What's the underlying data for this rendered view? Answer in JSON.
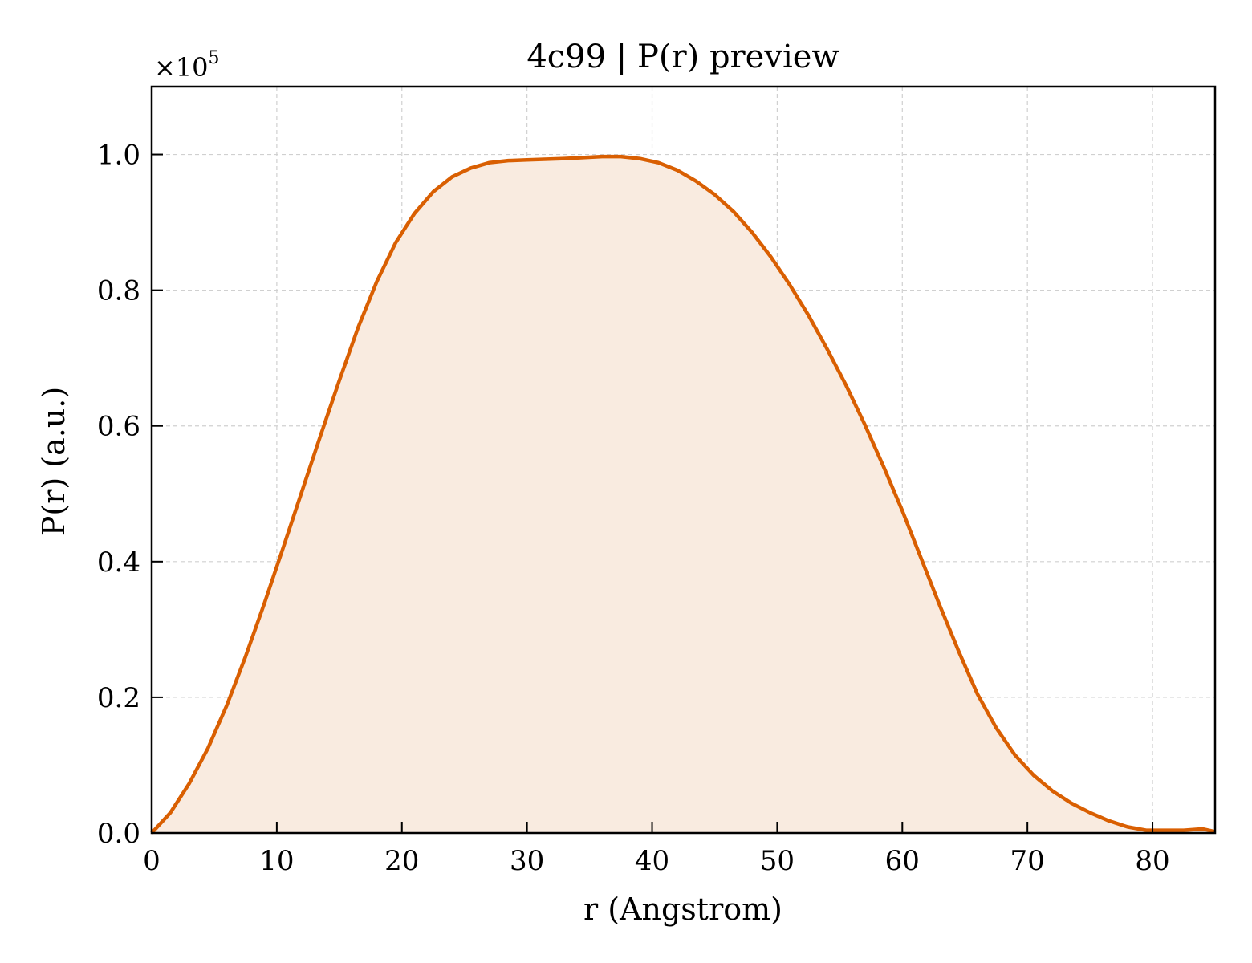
{
  "chart_data": {
    "type": "area",
    "title": "4c99 | P(r) preview",
    "xlabel": "r (Angstrom)",
    "ylabel": "P(r) (a.u.)",
    "y_multiplier_label": "×10",
    "y_multiplier_exponent": "5",
    "xlim": [
      0,
      85
    ],
    "ylim": [
      0,
      1.1
    ],
    "x_ticks": [
      0,
      10,
      20,
      30,
      40,
      50,
      60,
      70,
      80
    ],
    "y_ticks": [
      0.0,
      0.2,
      0.4,
      0.6,
      0.8,
      1.0
    ],
    "y_tick_labels": [
      "0.0",
      "0.2",
      "0.4",
      "0.6",
      "0.8",
      "1.0"
    ],
    "grid": true,
    "line_color": "#d95f02",
    "fill_color": "#f9ebe0",
    "series": [
      {
        "x": [
          0,
          1.5,
          3,
          4.5,
          6,
          7.5,
          9,
          10.5,
          12,
          13.5,
          15,
          16.5,
          18,
          19.5,
          21,
          22.5,
          24,
          25.5,
          27,
          28.5,
          30,
          33,
          36,
          37.5,
          39,
          40.5,
          42,
          43.5,
          45,
          46.5,
          48,
          49.5,
          51,
          52.5,
          54,
          55.5,
          57,
          58.5,
          60,
          61.5,
          63,
          64.5,
          66,
          67.5,
          69,
          70.5,
          72,
          73.5,
          75,
          76.5,
          78,
          79.5,
          81,
          82.5,
          84,
          85
        ],
        "y": [
          0.0,
          0.03,
          0.073,
          0.125,
          0.188,
          0.26,
          0.338,
          0.42,
          0.503,
          0.586,
          0.667,
          0.745,
          0.813,
          0.87,
          0.913,
          0.945,
          0.967,
          0.98,
          0.988,
          0.991,
          0.992,
          0.994,
          0.997,
          0.997,
          0.994,
          0.988,
          0.977,
          0.961,
          0.941,
          0.916,
          0.885,
          0.849,
          0.808,
          0.763,
          0.713,
          0.66,
          0.602,
          0.54,
          0.475,
          0.405,
          0.335,
          0.268,
          0.205,
          0.155,
          0.115,
          0.085,
          0.062,
          0.044,
          0.03,
          0.018,
          0.009,
          0.004,
          0.004,
          0.004,
          0.006,
          0.002
        ]
      }
    ]
  }
}
